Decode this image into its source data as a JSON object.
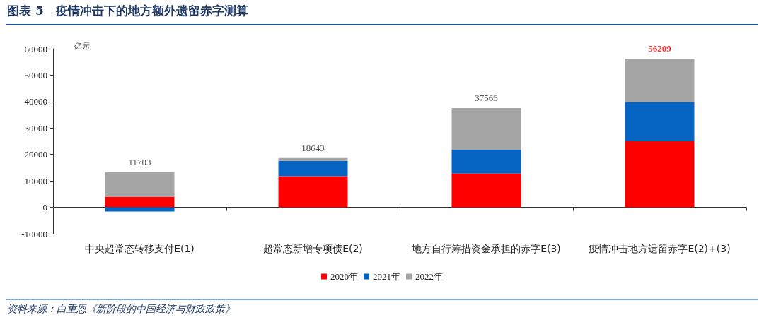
{
  "chart_data": {
    "type": "bar",
    "title": "图表 5　疫情冲击下的地方额外遗留赤字测算",
    "ylabel": "亿元",
    "categories": [
      "中央超常态转移支付E(1)",
      "超常态新增专项债E(2)",
      "地方自行筹措资金承担的赤字E(3)",
      "疫情冲击地方遗留赤字E(2)+(3)"
    ],
    "series": [
      {
        "name": "2020年",
        "color": "#ff0000",
        "values": [
          4000,
          11800,
          12800,
          25000
        ]
      },
      {
        "name": "2021年",
        "color": "#0563c1",
        "values": [
          -1600,
          5800,
          9000,
          14900
        ]
      },
      {
        "name": "2022年",
        "color": "#a5a5a5",
        "values": [
          9303,
          1043,
          15766,
          16309
        ]
      }
    ],
    "stacked": true,
    "totals": [
      "11703",
      "18643",
      "37566",
      "56209"
    ],
    "ylim": [
      -10000,
      60000
    ],
    "yticks": [
      -10000,
      0,
      10000,
      20000,
      30000,
      40000,
      50000,
      60000
    ],
    "legend": "bottom",
    "annotations": [
      "资料来源：白重恩《新阶段的中国经济与财政政策》"
    ]
  }
}
